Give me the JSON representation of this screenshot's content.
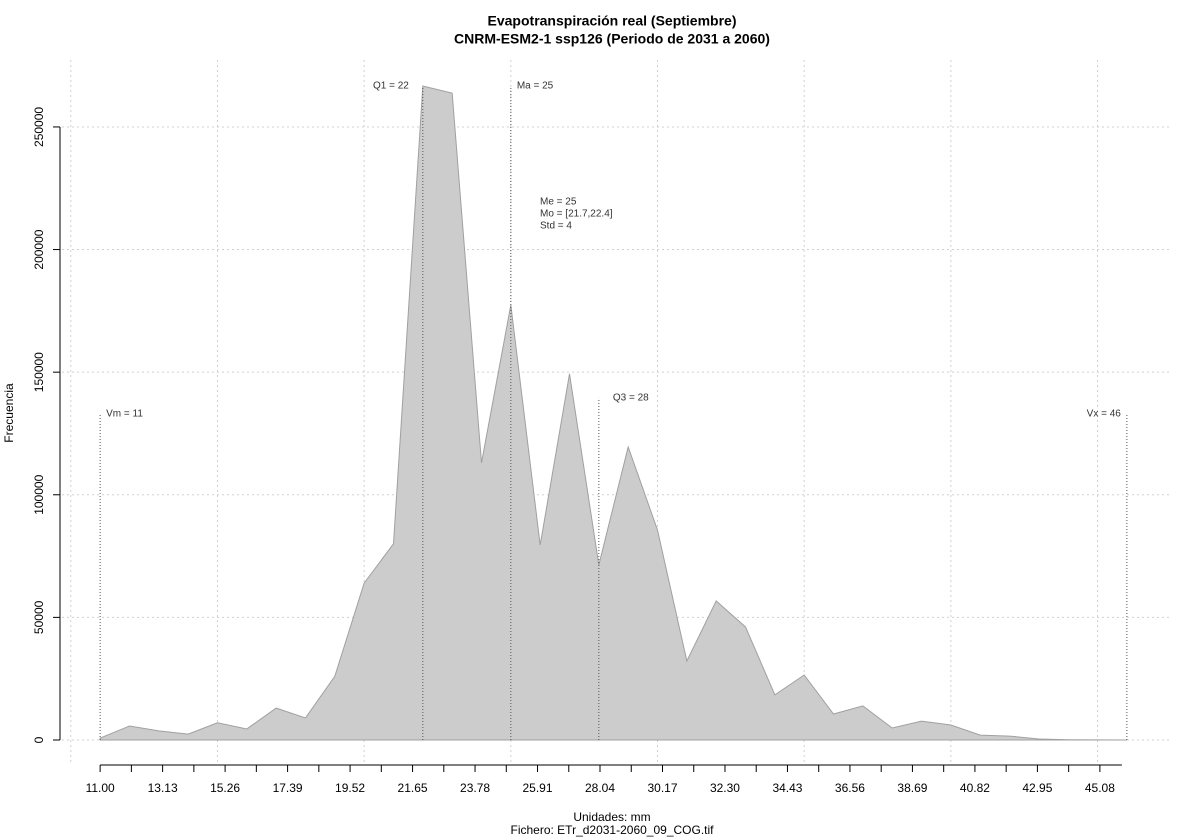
{
  "chart_data": {
    "type": "area",
    "title": "Evapotranspiración real (Septiembre)",
    "subtitle": "CNRM-ESM2-1 ssp126 (Periodo de 2031 a 2060)",
    "x_label": "Unidades: mm",
    "caption": "Fichero: ETr_d2031-2060_09_COG.tif",
    "y_label": "Frecuencia",
    "x": [
      11,
      12,
      13,
      14,
      15,
      16,
      17,
      18,
      19,
      20,
      21,
      22,
      23,
      24,
      25,
      26,
      27,
      28,
      29,
      30,
      31,
      32,
      33,
      34,
      35,
      36,
      37,
      38,
      39,
      40,
      41,
      42,
      43,
      44,
      45,
      46
    ],
    "values": [
      800,
      5700,
      3700,
      2400,
      7000,
      4500,
      13000,
      9000,
      26000,
      64000,
      80000,
      266700,
      263800,
      113000,
      177400,
      79500,
      149300,
      71400,
      119500,
      85600,
      32200,
      56700,
      46100,
      18400,
      26500,
      10600,
      13900,
      4900,
      7700,
      6100,
      2000,
      1600,
      400,
      100,
      50,
      0
    ],
    "color": "#cccccc",
    "line_color": "#a0a0a0",
    "xlim": [
      9.7,
      47.47
    ],
    "ylim": [
      -10200,
      277300
    ],
    "xticks": [
      {
        "value": 11,
        "label": "11.00"
      },
      {
        "value": 13.13,
        "label": "13.13"
      },
      {
        "value": 15.26,
        "label": "15.26"
      },
      {
        "value": 17.39,
        "label": "17.39"
      },
      {
        "value": 19.52,
        "label": "19.52"
      },
      {
        "value": 21.65,
        "label": "21.65"
      },
      {
        "value": 23.78,
        "label": "23.78"
      },
      {
        "value": 25.91,
        "label": "25.91"
      },
      {
        "value": 28.04,
        "label": "28.04"
      },
      {
        "value": 30.17,
        "label": "30.17"
      },
      {
        "value": 32.3,
        "label": "32.30"
      },
      {
        "value": 34.43,
        "label": "34.43"
      },
      {
        "value": 36.56,
        "label": "36.56"
      },
      {
        "value": 38.69,
        "label": "38.69"
      },
      {
        "value": 40.82,
        "label": "40.82"
      },
      {
        "value": 42.95,
        "label": "42.95"
      },
      {
        "value": 45.08,
        "label": "45.08"
      }
    ],
    "xminorticks": [
      12.065,
      14.195,
      16.325,
      18.455,
      20.585,
      22.715,
      24.845,
      26.975,
      29.105,
      31.235,
      33.365,
      35.495,
      37.625,
      39.755,
      41.885,
      44.015
    ],
    "xgrid": [
      10,
      15,
      20,
      25,
      30,
      35,
      40,
      45
    ],
    "yticks": [
      0,
      50000,
      100000,
      150000,
      200000,
      250000
    ],
    "grid": true,
    "annotations": [
      {
        "label": "Vm = 11",
        "x": 11,
        "y": 133000
      },
      {
        "label": "Q1 = 22",
        "x": 22,
        "y": 266700
      },
      {
        "label": "Ma = 25",
        "x": 25,
        "y": 266700
      },
      {
        "label": "Q3 = 28",
        "x": 28,
        "y": 139500
      },
      {
        "label": "Vx = 46",
        "x": 46,
        "y": 133000
      }
    ],
    "stats": [
      "Me = 25",
      "Mo = [21.7,22.4]",
      "Std = 4"
    ]
  }
}
